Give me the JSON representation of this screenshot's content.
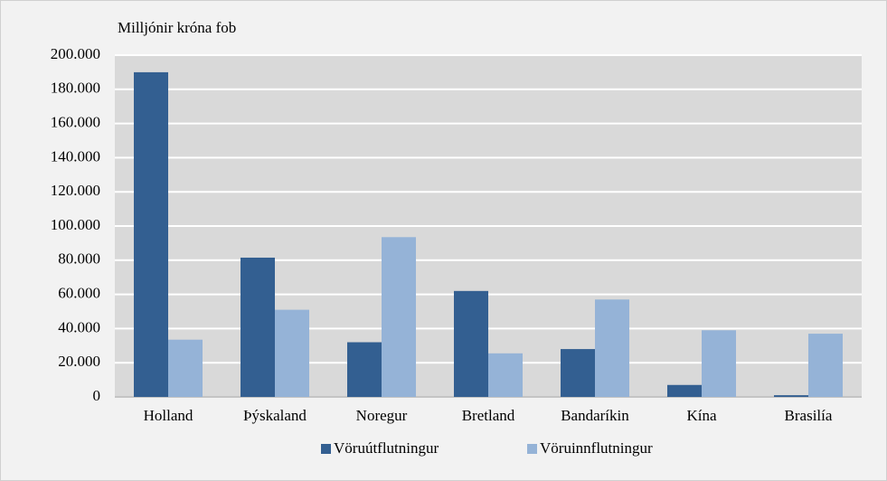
{
  "chart_data": {
    "type": "bar",
    "y_label": "Milljónir króna fob",
    "categories": [
      "Holland",
      "Þýskaland",
      "Noregur",
      "Bretland",
      "Bandaríkin",
      "Kína",
      "Brasilía"
    ],
    "series": [
      {
        "name": "Vöruútflutningur",
        "color": "#335f91",
        "values": [
          190000,
          81500,
          32000,
          62000,
          28000,
          7000,
          1000
        ]
      },
      {
        "name": "Vöruinnflutningur",
        "color": "#95b3d7",
        "values": [
          33500,
          51000,
          93500,
          25500,
          57000,
          39000,
          37000
        ]
      }
    ],
    "ylim": [
      0,
      200000
    ],
    "yticks": [
      0,
      {
        "value": 20000,
        "label": "20.000"
      },
      {
        "value": 40000,
        "label": "40.000"
      },
      {
        "value": 60000,
        "label": "60.000"
      },
      {
        "value": 80000,
        "label": "80.000"
      },
      {
        "value": 100000,
        "label": "100.000"
      },
      {
        "value": 120000,
        "label": "120.000"
      },
      {
        "value": 140000,
        "label": "140.000"
      },
      {
        "value": 160000,
        "label": "160.000"
      },
      {
        "value": 180000,
        "label": "180.000"
      },
      {
        "value": 200000,
        "label": "200.000"
      }
    ],
    "grid": true,
    "legend": "bottom"
  }
}
